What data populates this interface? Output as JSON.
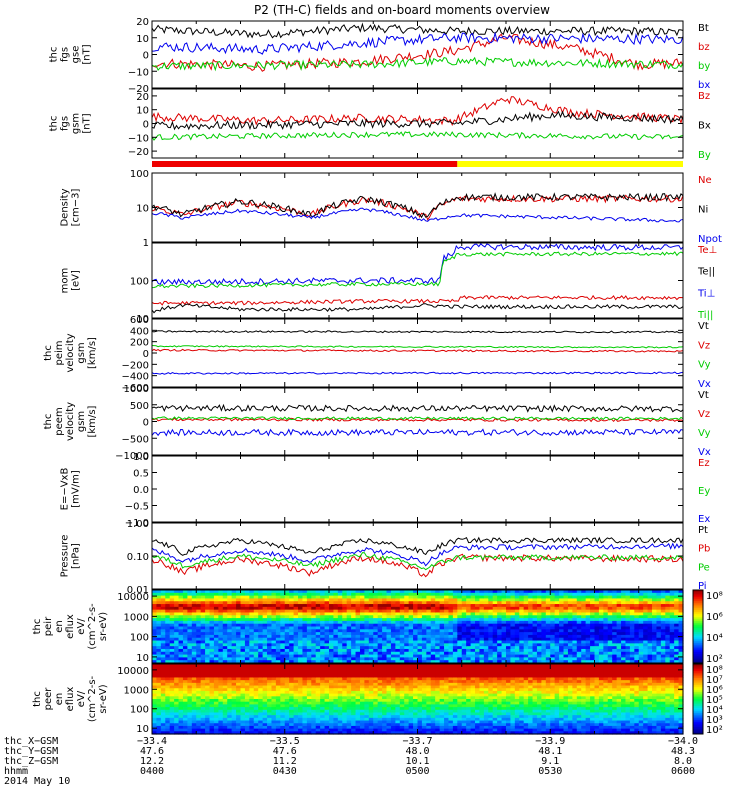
{
  "title": "P2 (TH-C) fields and on-board moments overview",
  "x_range": [
    0,
    120
  ],
  "chart_data": [
    {
      "type": "line",
      "ylabel": [
        "thc",
        "fgs",
        "gse",
        "[nT]"
      ],
      "ylim": [
        -20,
        20
      ],
      "ytick_labels": [
        "20",
        "10",
        "0",
        "−10",
        "−20"
      ],
      "ytick_values": [
        20,
        10,
        0,
        -10,
        -20
      ],
      "series": [
        {
          "name": "Bt",
          "color": "#000000",
          "key": [
            [
              0,
              15
            ],
            [
              25,
              12
            ],
            [
              48,
              16
            ],
            [
              68,
              14
            ],
            [
              110,
              14
            ],
            [
              120,
              13
            ]
          ],
          "noise": 2.5
        },
        {
          "name": "bz",
          "color": "#dd0000",
          "key": [
            [
              0,
              -5
            ],
            [
              25,
              -7
            ],
            [
              48,
              -4
            ],
            [
              68,
              2
            ],
            [
              80,
              10
            ],
            [
              95,
              4
            ],
            [
              110,
              -6
            ],
            [
              120,
              -5
            ]
          ],
          "noise": 3
        },
        {
          "name": "by",
          "color": "#00cc00",
          "key": [
            [
              0,
              -7
            ],
            [
              48,
              -6
            ],
            [
              68,
              -4
            ],
            [
              120,
              -6
            ]
          ],
          "noise": 2.5
        },
        {
          "name": "bx",
          "color": "#0000ee",
          "key": [
            [
              0,
              5
            ],
            [
              25,
              3
            ],
            [
              48,
              7
            ],
            [
              68,
              10
            ],
            [
              120,
              9
            ]
          ],
          "noise": 3
        }
      ]
    },
    {
      "type": "line",
      "ylabel": [
        "thc",
        "fgs",
        "gsm",
        "[nT]"
      ],
      "ylim": [
        -25,
        25
      ],
      "ytick_labels": [
        "20",
        "10",
        "0",
        "−10",
        "−20"
      ],
      "ytick_values": [
        20,
        10,
        0,
        -10,
        -20
      ],
      "series": [
        {
          "name": "Bz",
          "color": "#dd0000",
          "key": [
            [
              0,
              5
            ],
            [
              25,
              2
            ],
            [
              48,
              4
            ],
            [
              68,
              2
            ],
            [
              80,
              18
            ],
            [
              95,
              8
            ],
            [
              120,
              3
            ]
          ],
          "noise": 3
        },
        {
          "name": "Bx",
          "color": "#000000",
          "key": [
            [
              0,
              -2
            ],
            [
              48,
              0
            ],
            [
              68,
              0
            ],
            [
              90,
              6
            ],
            [
              120,
              3
            ]
          ],
          "noise": 3
        },
        {
          "name": "By",
          "color": "#00cc00",
          "key": [
            [
              0,
              -10
            ],
            [
              48,
              -8
            ],
            [
              68,
              -8
            ],
            [
              120,
              -10
            ]
          ],
          "noise": 2
        }
      ]
    },
    {
      "type": "status_bar",
      "segments": [
        {
          "from": 0,
          "to": 69,
          "color": "#ee0000"
        },
        {
          "from": 69,
          "to": 120,
          "color": "#ffff00"
        }
      ]
    },
    {
      "type": "line",
      "ylabel": [
        "Density",
        "[cm−3]"
      ],
      "scale": "log",
      "ylim": [
        1,
        100
      ],
      "ytick_labels": [
        "100",
        "10",
        "1"
      ],
      "ytick_values": [
        100,
        10,
        1
      ],
      "series": [
        {
          "name": "Ne",
          "color": "#dd0000",
          "key": [
            [
              0,
              10
            ],
            [
              7,
              6
            ],
            [
              20,
              14
            ],
            [
              36,
              6
            ],
            [
              48,
              17
            ],
            [
              62,
              5
            ],
            [
              69,
              18
            ],
            [
              120,
              18
            ]
          ],
          "noise": 0.1
        },
        {
          "name": "Ni",
          "color": "#000000",
          "key": [
            [
              0,
              11
            ],
            [
              7,
              6
            ],
            [
              20,
              15
            ],
            [
              36,
              6
            ],
            [
              48,
              18
            ],
            [
              62,
              5
            ],
            [
              69,
              20
            ],
            [
              120,
              20
            ]
          ],
          "noise": 0.1
        },
        {
          "name": "Npot",
          "color": "#0000ee",
          "key": [
            [
              0,
              7
            ],
            [
              7,
              5
            ],
            [
              20,
              8
            ],
            [
              36,
              5
            ],
            [
              48,
              9
            ],
            [
              62,
              4
            ],
            [
              69,
              6
            ],
            [
              120,
              4
            ]
          ],
          "noise": 0.05
        }
      ]
    },
    {
      "type": "line",
      "ylabel": [
        "mom",
        "[eV]"
      ],
      "scale": "log",
      "ylim": [
        10,
        1000
      ],
      "ytick_labels": [
        "100",
        "10"
      ],
      "ytick_values": [
        100,
        10
      ],
      "series": [
        {
          "name": "Te⊥",
          "color": "#dd0000",
          "key": [
            [
              0,
              25
            ],
            [
              20,
              25
            ],
            [
              48,
              28
            ],
            [
              69,
              28
            ],
            [
              70,
              35
            ],
            [
              120,
              35
            ]
          ],
          "noise": 0.05
        },
        {
          "name": "Te||",
          "color": "#000000",
          "key": [
            [
              0,
              15
            ],
            [
              7,
              22
            ],
            [
              20,
              17
            ],
            [
              48,
              17
            ],
            [
              62,
              22
            ],
            [
              69,
              20
            ],
            [
              120,
              20
            ]
          ],
          "noise": 0.05
        },
        {
          "name": "Ti⊥",
          "color": "#0000ee",
          "key": [
            [
              0,
              90
            ],
            [
              48,
              100
            ],
            [
              65,
              100
            ],
            [
              66,
              400
            ],
            [
              68,
              500
            ],
            [
              69,
              800
            ],
            [
              120,
              750
            ]
          ],
          "noise": 0.08
        },
        {
          "name": "Ti||",
          "color": "#00cc00",
          "key": [
            [
              0,
              70
            ],
            [
              48,
              80
            ],
            [
              65,
              80
            ],
            [
              66,
              320
            ],
            [
              68,
              400
            ],
            [
              69,
              500
            ],
            [
              120,
              520
            ]
          ],
          "noise": 0.05
        }
      ]
    },
    {
      "type": "line",
      "ylabel": [
        "thc",
        "peim",
        "velocity",
        "gsm",
        "[km/s]"
      ],
      "ylim": [
        -600,
        600
      ],
      "ytick_labels": [
        "600",
        "400",
        "200",
        "0",
        "−200",
        "−400",
        "−600"
      ],
      "ytick_values": [
        600,
        400,
        200,
        0,
        -200,
        -400,
        -600
      ],
      "series": [
        {
          "name": "Vt",
          "color": "#000000",
          "key": [
            [
              0,
              380
            ],
            [
              120,
              370
            ]
          ],
          "noise": 15
        },
        {
          "name": "Vz",
          "color": "#dd0000",
          "key": [
            [
              0,
              50
            ],
            [
              120,
              30
            ]
          ],
          "noise": 15
        },
        {
          "name": "Vy",
          "color": "#00cc00",
          "key": [
            [
              0,
              120
            ],
            [
              120,
              100
            ]
          ],
          "noise": 12
        },
        {
          "name": "Vx",
          "color": "#0000ee",
          "key": [
            [
              0,
              -360
            ],
            [
              120,
              -350
            ]
          ],
          "noise": 15
        }
      ]
    },
    {
      "type": "line",
      "ylabel": [
        "thc",
        "peem",
        "velocity",
        "gsm",
        "[km/s]"
      ],
      "ylim": [
        -1000,
        1000
      ],
      "ytick_labels": [
        "1000",
        "500",
        "0",
        "−500",
        "−1000"
      ],
      "ytick_values": [
        1000,
        500,
        0,
        -500,
        -1000
      ],
      "series": [
        {
          "name": "Vt",
          "color": "#000000",
          "key": [
            [
              0,
              400
            ],
            [
              120,
              380
            ]
          ],
          "noise": 90
        },
        {
          "name": "Vz",
          "color": "#dd0000",
          "key": [
            [
              0,
              60
            ],
            [
              120,
              40
            ]
          ],
          "noise": 40
        },
        {
          "name": "Vy",
          "color": "#00cc00",
          "key": [
            [
              0,
              100
            ],
            [
              120,
              90
            ]
          ],
          "noise": 40
        },
        {
          "name": "Vx",
          "color": "#0000ee",
          "key": [
            [
              0,
              -330
            ],
            [
              120,
              -320
            ]
          ],
          "noise": 90
        }
      ]
    },
    {
      "type": "line",
      "ylabel": [
        "E=−VxB",
        "[mV/m]"
      ],
      "ylim": [
        -1,
        1
      ],
      "ytick_labels": [
        "1.0",
        "0.5",
        "0.0",
        "−0.5",
        "−1.0"
      ],
      "ytick_values": [
        1,
        0.5,
        0,
        -0.5,
        -1
      ],
      "series": [
        {
          "name": "Ez",
          "color": "#dd0000",
          "key": [],
          "noise": 0
        },
        {
          "name": "Ey",
          "color": "#00cc00",
          "key": [],
          "noise": 0
        },
        {
          "name": "Ex",
          "color": "#0000ee",
          "key": [],
          "noise": 0
        }
      ]
    },
    {
      "type": "line",
      "ylabel": [
        "Pressure",
        "[nPa]"
      ],
      "scale": "log",
      "ylim": [
        0.01,
        1
      ],
      "ytick_labels": [
        "1.00",
        "0.10",
        "0.01"
      ],
      "ytick_values": [
        1,
        0.1,
        0.01
      ],
      "series": [
        {
          "name": "Pt",
          "color": "#000000",
          "key": [
            [
              0,
              0.3
            ],
            [
              7,
              0.12
            ],
            [
              20,
              0.3
            ],
            [
              36,
              0.12
            ],
            [
              48,
              0.3
            ],
            [
              62,
              0.12
            ],
            [
              69,
              0.3
            ],
            [
              120,
              0.3
            ]
          ],
          "noise": 0.08
        },
        {
          "name": "Pb",
          "color": "#dd0000",
          "key": [
            [
              0,
              0.08
            ],
            [
              7,
              0.03
            ],
            [
              20,
              0.08
            ],
            [
              36,
              0.03
            ],
            [
              48,
              0.09
            ],
            [
              62,
              0.025
            ],
            [
              69,
              0.09
            ],
            [
              120,
              0.08
            ]
          ],
          "noise": 0.1
        },
        {
          "name": "Pe",
          "color": "#00cc00",
          "key": [
            [
              0,
              0.1
            ],
            [
              7,
              0.05
            ],
            [
              20,
              0.1
            ],
            [
              36,
              0.05
            ],
            [
              48,
              0.11
            ],
            [
              62,
              0.04
            ],
            [
              69,
              0.09
            ],
            [
              120,
              0.09
            ]
          ],
          "noise": 0.08
        },
        {
          "name": "Pi",
          "color": "#0000ee",
          "key": [
            [
              0,
              0.15
            ],
            [
              7,
              0.07
            ],
            [
              20,
              0.15
            ],
            [
              36,
              0.07
            ],
            [
              48,
              0.16
            ],
            [
              62,
              0.06
            ],
            [
              69,
              0.18
            ],
            [
              120,
              0.2
            ]
          ],
          "noise": 0.08
        }
      ]
    },
    {
      "type": "heatmap",
      "ylabel": [
        "thc",
        "peir",
        "en",
        "eflux",
        "eV/",
        "(cm^2-s-",
        "sr-eV)"
      ],
      "scale": "log",
      "ylim": [
        5,
        20000
      ],
      "ytick_labels": [
        "10000",
        "1000",
        "100",
        "10"
      ],
      "ytick_values": [
        10000,
        1000,
        100,
        10
      ],
      "colorbar_labels": [
        "10⁸",
        "10⁶",
        "10⁴",
        "10²"
      ],
      "colorbar_values": [
        8,
        6,
        4,
        2
      ],
      "colorbar_range": [
        1.5,
        8.5
      ]
    },
    {
      "type": "heatmap",
      "ylabel": [
        "thc",
        "peer",
        "en",
        "eflux",
        "eV/",
        "(cm^2-s-",
        "sr-eV)"
      ],
      "scale": "log",
      "ylim": [
        5,
        20000
      ],
      "ytick_labels": [
        "10000",
        "1000",
        "100",
        "10"
      ],
      "ytick_values": [
        10000,
        1000,
        100,
        10
      ],
      "colorbar_labels": [
        "10⁸",
        "10⁷",
        "10⁶",
        "10⁵",
        "10⁴",
        "10³",
        "10²"
      ],
      "colorbar_values": [
        8,
        7,
        6,
        5,
        4,
        3,
        2
      ],
      "colorbar_range": [
        1.5,
        8.5
      ]
    }
  ],
  "footer": {
    "rows": [
      {
        "label": "thc_X−GSM",
        "values": [
          "−33.4",
          "−33.5",
          "−33.7",
          "−33.9",
          "−34.0"
        ]
      },
      {
        "label": "thc_Y−GSM",
        "values": [
          "47.6",
          "47.6",
          "48.0",
          "48.1",
          "48.3"
        ]
      },
      {
        "label": "thc_Z−GSM",
        "values": [
          "12.2",
          "11.2",
          "10.1",
          "9.1",
          "8.0"
        ]
      },
      {
        "label": "hhmm",
        "values": [
          "0400",
          "0430",
          "0500",
          "0530",
          "0600"
        ]
      }
    ],
    "date": "2014 May 10"
  }
}
